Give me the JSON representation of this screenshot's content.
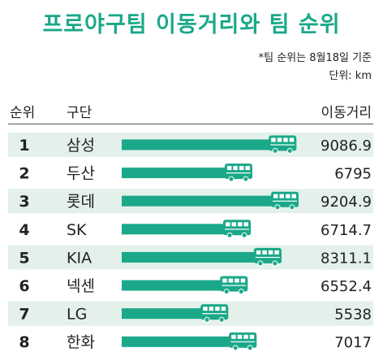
{
  "title": "프로야구팀 이동거리와 팀 순위",
  "notes": [
    "*팀 순위는 8월18일 기준",
    "단위: km"
  ],
  "headers": {
    "rank": "순위",
    "team": "구단",
    "distance": "이동거리"
  },
  "colors": {
    "title": "#1aa889",
    "bar": "#1aa889",
    "stripe": "#e3f1ea",
    "bus": "#ffffff"
  },
  "chart_data": {
    "type": "bar",
    "orientation": "horizontal",
    "categories": [
      "삼성",
      "두산",
      "롯데",
      "SK",
      "KIA",
      "넥센",
      "LG",
      "한화"
    ],
    "ranks": [
      "1",
      "2",
      "3",
      "4",
      "5",
      "6",
      "7",
      "8"
    ],
    "values": [
      9086.9,
      6795,
      9204.9,
      6714.7,
      8311.1,
      6552.4,
      5538,
      7017
    ],
    "labels": [
      "9086.9",
      "6795",
      "9204.9",
      "6714.7",
      "8311.1",
      "6552.4",
      "5538",
      "7017"
    ],
    "xlim": [
      0,
      9204.9
    ],
    "units": "km",
    "legend": "none",
    "grid": false
  }
}
